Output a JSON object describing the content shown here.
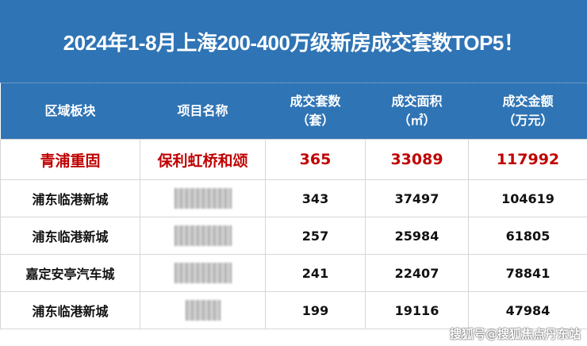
{
  "title": "2024年1-8月上海200-400万级新房成交套数TOP5！",
  "headers": [
    {
      "line1": "区域板块",
      "line2": ""
    },
    {
      "line1": "项目名称",
      "line2": ""
    },
    {
      "line1": "成交套数",
      "line2": "（套）"
    },
    {
      "line1": "成交面积",
      "line2": "（㎡）"
    },
    {
      "line1": "成交金额",
      "line2": "（万元）"
    }
  ],
  "rows": [
    {
      "area": "青浦重固",
      "project": "保利虹桥和颂",
      "units": "365",
      "sqm": "33089",
      "amount": "117992",
      "highlight": true
    },
    {
      "area": "浦东临港新城",
      "project": "",
      "units": "343",
      "sqm": "37497",
      "amount": "104619",
      "project_obscured": true
    },
    {
      "area": "浦东临港新城",
      "project": "",
      "units": "257",
      "sqm": "25984",
      "amount": "61805",
      "project_obscured": true
    },
    {
      "area": "嘉定安亭汽车城",
      "project": "",
      "units": "241",
      "sqm": "22407",
      "amount": "78841",
      "project_obscured": true
    },
    {
      "area": "浦东临港新城",
      "project": "",
      "units": "199",
      "sqm": "19116",
      "amount": "47984",
      "project_obscured": true
    }
  ],
  "watermark": "搜狐号@搜狐焦点丹东站",
  "colors": {
    "header_bg": "#2f74b5",
    "highlight_text": "#c00000"
  }
}
